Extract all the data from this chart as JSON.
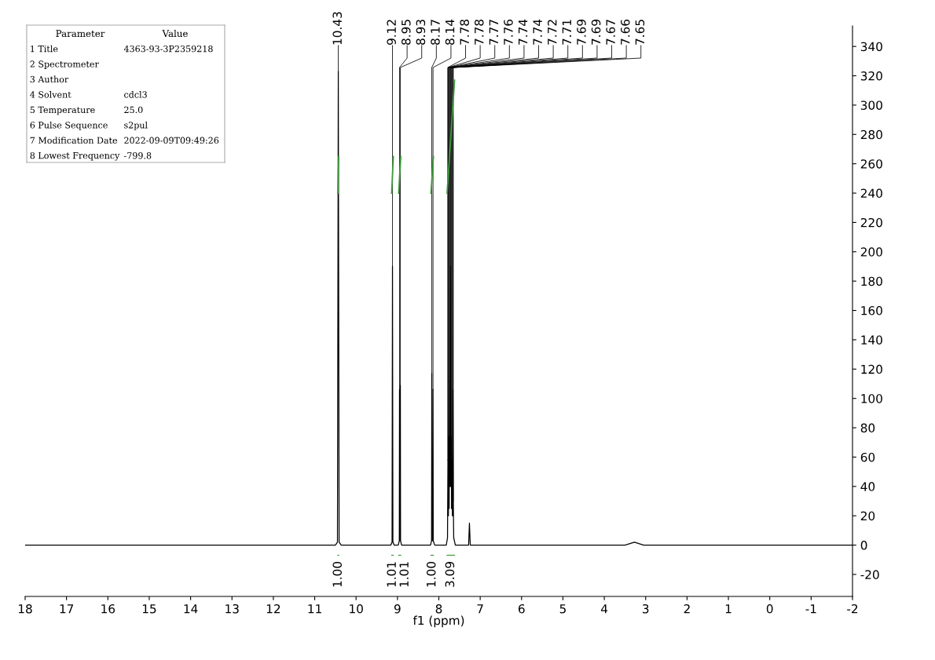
{
  "chart_data": [
    {
      "type": "line",
      "xlabel": "f1 (ppm)",
      "xlim": [
        18,
        -2
      ],
      "xticks": [
        18,
        17,
        16,
        15,
        14,
        13,
        12,
        11,
        10,
        9,
        8,
        7,
        6,
        5,
        4,
        3,
        2,
        1,
        0,
        -1,
        -2
      ],
      "ylim": [
        -35,
        354
      ],
      "yticks": [
        -20,
        0,
        20,
        40,
        60,
        80,
        100,
        120,
        140,
        160,
        180,
        200,
        220,
        240,
        260,
        280,
        300,
        320,
        340
      ],
      "grid": false,
      "legend": false,
      "marker": "none",
      "line_style": "solid",
      "series": [
        {
          "color": "#000000",
          "x": [
            18,
            10.5,
            10.45,
            10.43,
            10.41,
            10.36,
            9.16,
            9.13,
            9.12,
            9.11,
            9.08,
            8.98,
            8.955,
            8.95,
            8.945,
            8.935,
            8.93,
            8.925,
            8.9,
            8.2,
            8.175,
            8.17,
            8.165,
            8.145,
            8.14,
            8.135,
            8.1,
            7.82,
            7.79,
            7.78,
            7.77,
            7.76,
            7.75,
            7.74,
            7.73,
            7.72,
            7.71,
            7.7,
            7.69,
            7.68,
            7.67,
            7.66,
            7.65,
            7.64,
            7.6,
            7.28,
            7.26,
            7.24,
            3.5,
            3.27,
            3.05,
            -2
          ],
          "values": [
            0,
            0,
            2,
            323,
            2,
            0,
            0,
            2,
            190,
            2,
            0,
            0,
            3,
            106,
            3,
            3,
            109,
            3,
            0,
            0,
            3,
            117,
            3,
            3,
            106,
            3,
            0,
            0,
            5,
            58,
            20,
            74,
            25,
            112,
            40,
            190,
            40,
            74,
            25,
            58,
            20,
            106,
            30,
            5,
            0,
            0,
            15,
            0,
            0,
            2,
            0,
            0
          ]
        },
        {
          "color": "#3c9a3c",
          "x": [
            10.44,
            10.42
          ],
          "values": [
            240,
            265
          ]
        },
        {
          "color": "#3c9a3c",
          "x": [
            9.14,
            9.1
          ],
          "values": [
            240,
            265
          ]
        },
        {
          "color": "#3c9a3c",
          "x": [
            8.97,
            8.92
          ],
          "values": [
            240,
            265
          ]
        },
        {
          "color": "#3c9a3c",
          "x": [
            8.19,
            8.13
          ],
          "values": [
            240,
            265
          ]
        },
        {
          "color": "#3c9a3c",
          "x": [
            7.8,
            7.62
          ],
          "values": [
            240,
            317
          ]
        }
      ],
      "annotations": [
        {
          "text": "10.43",
          "x": 10.43,
          "y": 323
        },
        {
          "text": "9.12",
          "x": 9.12,
          "y": 190
        },
        {
          "text": "8.95",
          "x": 8.95,
          "y": 106
        },
        {
          "text": "8.93",
          "x": 8.93,
          "y": 109
        },
        {
          "text": "8.17",
          "x": 8.17,
          "y": 117
        },
        {
          "text": "8.14",
          "x": 8.14,
          "y": 106
        },
        {
          "text": "7.78",
          "x": 7.78,
          "y": 58
        },
        {
          "text": "7.78",
          "x": 7.78,
          "y": 58
        },
        {
          "text": "7.77",
          "x": 7.77,
          "y": 20
        },
        {
          "text": "7.76",
          "x": 7.76,
          "y": 74
        },
        {
          "text": "7.74",
          "x": 7.74,
          "y": 112
        },
        {
          "text": "7.74",
          "x": 7.74,
          "y": 112
        },
        {
          "text": "7.72",
          "x": 7.72,
          "y": 190
        },
        {
          "text": "7.71",
          "x": 7.71,
          "y": 40
        },
        {
          "text": "7.69",
          "x": 7.69,
          "y": 25
        },
        {
          "text": "7.69",
          "x": 7.69,
          "y": 25
        },
        {
          "text": "7.67",
          "x": 7.67,
          "y": 20
        },
        {
          "text": "7.66",
          "x": 7.66,
          "y": 106
        },
        {
          "text": "7.65",
          "x": 7.65,
          "y": 30
        },
        "1.00",
        "1.01",
        "1.01",
        "1.00",
        "3.09"
      ]
    },
    {
      "type": "other",
      "annotations": [
        "Parameter\tValue",
        "1 Title\t4363-93-3P2359218",
        "2 Spectrometer",
        "3 Author",
        "4 Solvent\tcdcl3",
        "5 Temperature\t25.0",
        "6 Pulse Sequence\ts2pul",
        "7 Modification Date\t2022-09-09T09:49:26",
        "8 Lowest Frequency\t-799.8"
      ]
    }
  ]
}
